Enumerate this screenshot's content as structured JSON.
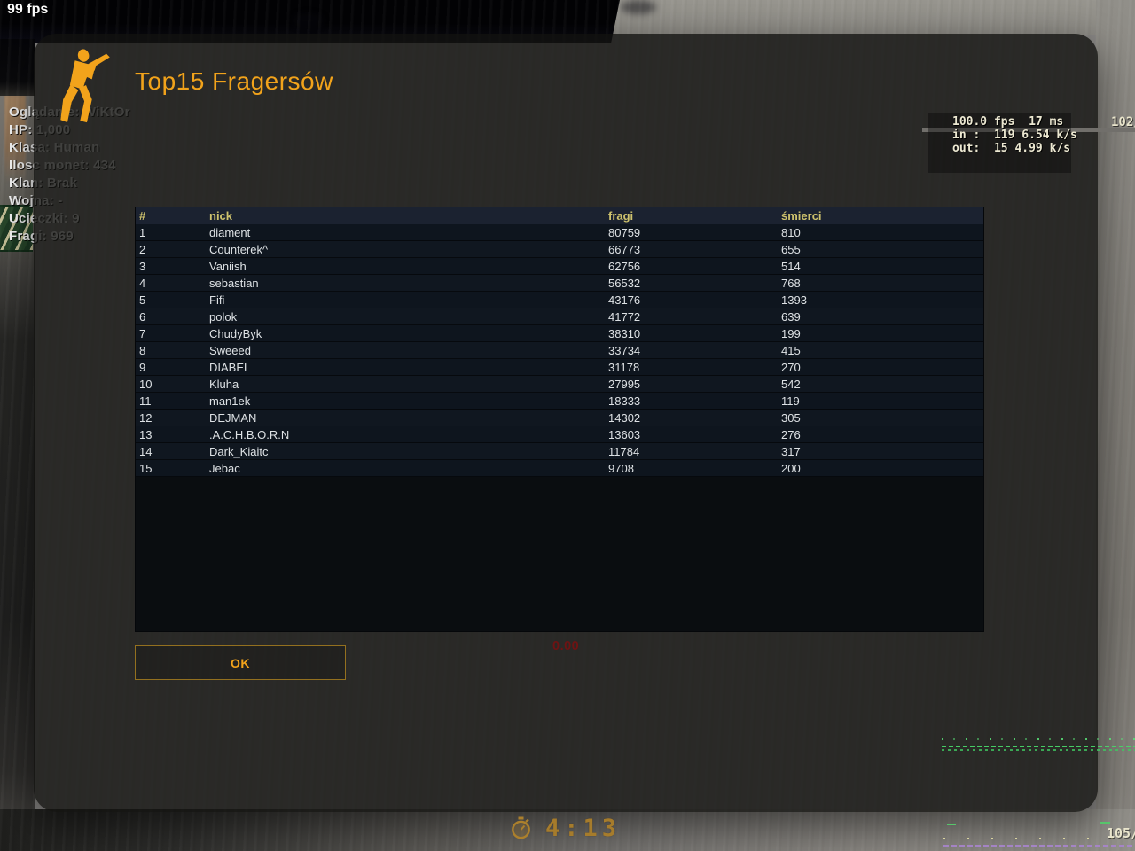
{
  "hud": {
    "fps_counter": "99 fps",
    "stats": [
      "Oglądanie: WiKtOr",
      "HP: 1,000",
      "Klasa: Human",
      "Ilosc monet: 434",
      "Klan: Brak",
      "Wojna: -",
      "Ucieczki: 9",
      "Fragi: 969"
    ],
    "red_value": "0.00",
    "timer": "4:13",
    "ammo_top_right": "102/",
    "ammo_bottom_right": "105/"
  },
  "netgraph": {
    "lines": [
      "100.0 fps  17 ms",
      "in :  119 6.54 k/s",
      "out:  15 4.99 k/s"
    ]
  },
  "dialog": {
    "title": "Top15 Fragersów",
    "ok_label": "OK",
    "table": {
      "headers": [
        "#",
        "nick",
        "fragi",
        "śmierci"
      ],
      "rows": [
        [
          "1",
          "diament",
          "80759",
          "810"
        ],
        [
          "2",
          "Counterek^",
          "66773",
          "655"
        ],
        [
          "3",
          "Vaniish",
          "62756",
          "514"
        ],
        [
          "4",
          "sebastian",
          "56532",
          "768"
        ],
        [
          "5",
          "Fifi",
          "43176",
          "1393"
        ],
        [
          "6",
          "polok",
          "41772",
          "639"
        ],
        [
          "7",
          "ChudyByk",
          "38310",
          "199"
        ],
        [
          "8",
          "Sweeed",
          "33734",
          "415"
        ],
        [
          "9",
          "DIABEL",
          "31178",
          "270"
        ],
        [
          "10",
          "Kluha",
          "27995",
          "542"
        ],
        [
          "11",
          "man1ek",
          "18333",
          "119"
        ],
        [
          "12",
          "DEJMAN",
          "14302",
          "305"
        ],
        [
          "13",
          ".A.C.H.B.O.R.N",
          "13603",
          "276"
        ],
        [
          "14",
          "Dark_Kiaitc",
          "11784",
          "317"
        ],
        [
          "15",
          "Jebac",
          "9708",
          "200"
        ]
      ]
    }
  },
  "colors": {
    "accent_orange": "#f2a31b",
    "header_yellow": "#cfc36d",
    "hud_cream": "#ede9d2",
    "value_red": "#6e1313",
    "graph_green": "#48d468",
    "graph_purple": "#a884cd",
    "timer_orange": "#ac802c"
  }
}
